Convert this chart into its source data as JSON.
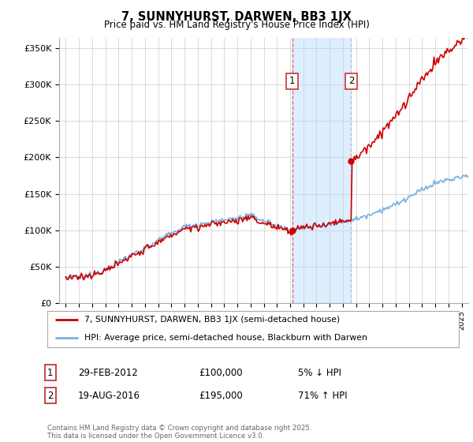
{
  "title": "7, SUNNYHURST, DARWEN, BB3 1JX",
  "subtitle": "Price paid vs. HM Land Registry's House Price Index (HPI)",
  "ylabel_ticks": [
    "£0",
    "£50K",
    "£100K",
    "£150K",
    "£200K",
    "£250K",
    "£300K",
    "£350K"
  ],
  "ytick_vals": [
    0,
    50000,
    100000,
    150000,
    200000,
    250000,
    300000,
    350000
  ],
  "ylim": [
    0,
    365000
  ],
  "xlim_start": 1994.5,
  "xlim_end": 2025.5,
  "purchase1_date": 2012.16,
  "purchase1_price": 100000,
  "purchase2_date": 2016.63,
  "purchase2_price": 195000,
  "red_line_color": "#cc0000",
  "blue_line_color": "#7aafe0",
  "highlight_color": "#ddeeff",
  "vline1_color": "#dd4444",
  "vline2_color": "#bbaacc",
  "grid_color": "#cccccc",
  "background_color": "#ffffff",
  "legend_line1": "7, SUNNYHURST, DARWEN, BB3 1JX (semi-detached house)",
  "legend_line2": "HPI: Average price, semi-detached house, Blackburn with Darwen",
  "table_row1_num": "1",
  "table_row1_date": "29-FEB-2012",
  "table_row1_price": "£100,000",
  "table_row1_hpi": "5% ↓ HPI",
  "table_row2_num": "2",
  "table_row2_date": "19-AUG-2016",
  "table_row2_price": "£195,000",
  "table_row2_hpi": "71% ↑ HPI",
  "footnote": "Contains HM Land Registry data © Crown copyright and database right 2025.\nThis data is licensed under the Open Government Licence v3.0."
}
